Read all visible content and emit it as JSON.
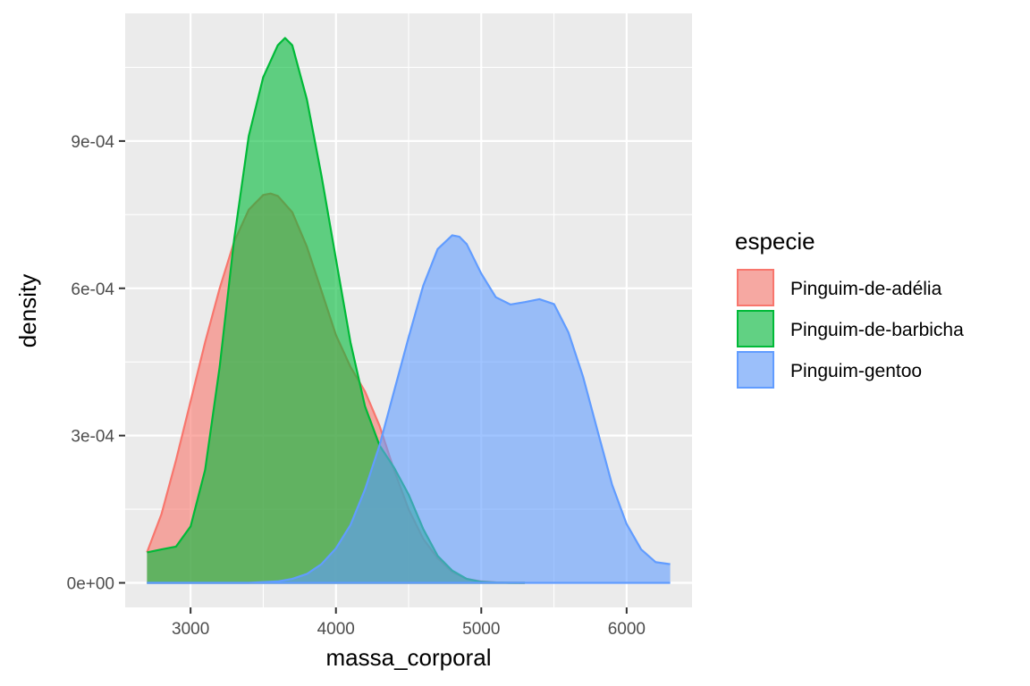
{
  "chart_data": {
    "type": "area",
    "subtype": "density",
    "xlabel": "massa_corporal",
    "ylabel": "density",
    "xlim": [
      2550,
      6450
    ],
    "ylim": [
      -5e-05,
      0.00116
    ],
    "x_ticks": [
      3000,
      4000,
      5000,
      6000
    ],
    "x_tick_labels": [
      "3000",
      "4000",
      "5000",
      "6000"
    ],
    "y_ticks": [
      0,
      0.0003,
      0.0006,
      0.0009
    ],
    "y_tick_labels": [
      "0e+00",
      "3e-04",
      "6e-04",
      "9e-04"
    ],
    "grid": true,
    "legend": {
      "title": "especie",
      "position": "right"
    },
    "series": [
      {
        "name": "Pinguim-de-adélia",
        "fill": "#F8766D",
        "line": "#F8766D",
        "x": [
          2700,
          2800,
          2900,
          3000,
          3100,
          3200,
          3300,
          3400,
          3500,
          3550,
          3600,
          3700,
          3800,
          3900,
          4000,
          4100,
          4200,
          4300,
          4400,
          4500,
          4600,
          4700,
          4800,
          4900,
          5000,
          5100,
          5200,
          5300
        ],
        "y": [
          6.2e-05,
          0.00014,
          0.00025,
          0.00037,
          0.00049,
          0.0006,
          0.000695,
          0.00076,
          0.00079,
          0.000793,
          0.000788,
          0.000755,
          0.000685,
          0.000595,
          0.000505,
          0.00044,
          0.00039,
          0.00032,
          0.00023,
          0.00015,
          9e-05,
          5e-05,
          2.2e-05,
          8e-06,
          3e-06,
          1e-06,
          2e-07,
          0
        ]
      },
      {
        "name": "Pinguim-de-barbicha",
        "fill": "#00BA38",
        "line": "#00BA38",
        "x": [
          2700,
          2800,
          2900,
          3000,
          3100,
          3200,
          3300,
          3400,
          3500,
          3600,
          3650,
          3700,
          3800,
          3900,
          4000,
          4100,
          4200,
          4300,
          4400,
          4500,
          4600,
          4700,
          4800,
          4900,
          5000,
          5100,
          5200,
          5300
        ],
        "y": [
          6.2e-05,
          6.8e-05,
          7.4e-05,
          0.000115,
          0.00023,
          0.00044,
          0.0007,
          0.00091,
          0.00103,
          0.001095,
          0.00111,
          0.001095,
          0.000985,
          0.00083,
          0.00066,
          0.00049,
          0.00036,
          0.00028,
          0.000235,
          0.00018,
          0.00011,
          5.5e-05,
          2.5e-05,
          8e-06,
          2e-06,
          5e-07,
          1e-07,
          0
        ]
      },
      {
        "name": "Pinguim-gentoo",
        "fill": "#619CFF",
        "line": "#619CFF",
        "x": [
          2700,
          3000,
          3200,
          3400,
          3600,
          3700,
          3800,
          3900,
          4000,
          4100,
          4200,
          4300,
          4400,
          4500,
          4600,
          4700,
          4800,
          4850,
          4900,
          5000,
          5100,
          5200,
          5300,
          5400,
          5500,
          5600,
          5700,
          5800,
          5900,
          6000,
          6100,
          6200,
          6300
        ],
        "y": [
          0,
          0,
          0,
          0,
          3e-06,
          8e-06,
          1.8e-05,
          3.8e-05,
          7e-05,
          0.000118,
          0.00019,
          0.00028,
          0.00039,
          0.0005,
          0.000605,
          0.00068,
          0.000708,
          0.000705,
          0.00069,
          0.00063,
          0.000582,
          0.000567,
          0.000572,
          0.000578,
          0.000568,
          0.00051,
          0.00042,
          0.00031,
          0.0002,
          0.00012,
          6.8e-05,
          4.2e-05,
          3.8e-05
        ]
      }
    ]
  }
}
